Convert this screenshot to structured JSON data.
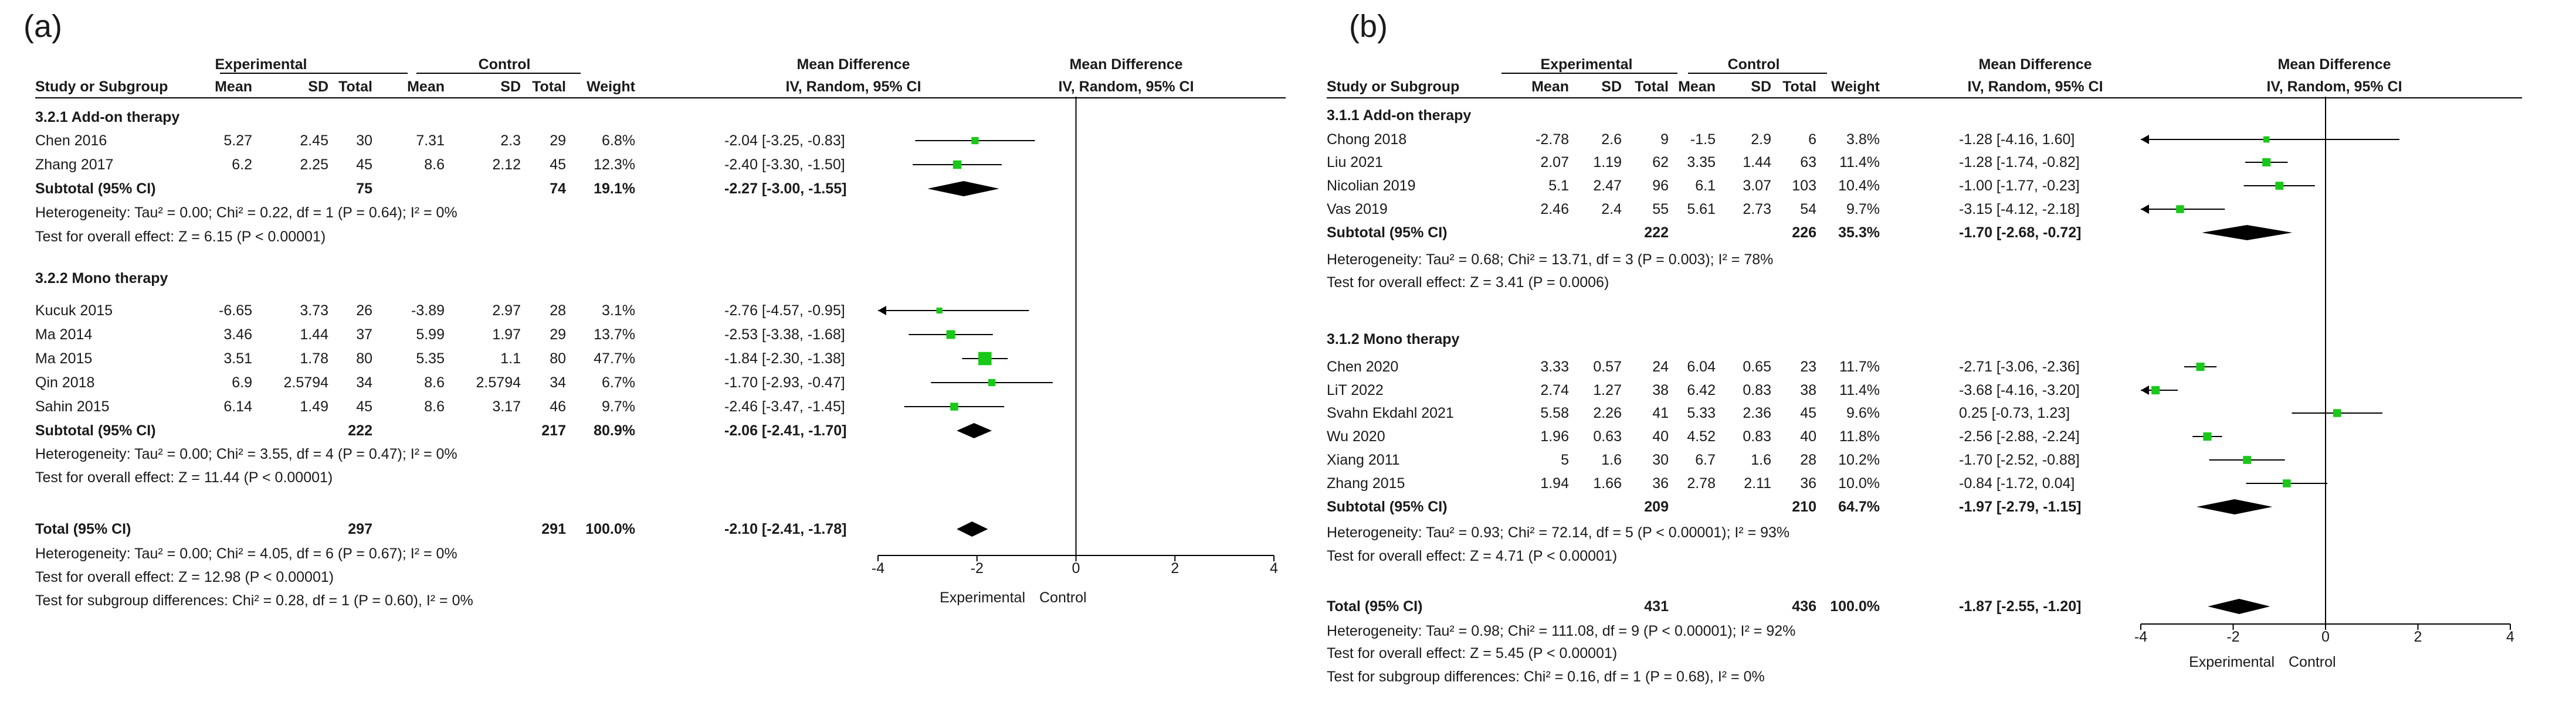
{
  "panels": [
    {
      "label": "(a)",
      "headers": {
        "experimental": "Experimental",
        "control": "Control",
        "mean_difference": "Mean Difference",
        "plot_title": "Mean Difference",
        "study": "Study or Subgroup",
        "mean_e": "Mean",
        "sd_e": "SD",
        "total_e": "Total",
        "mean_c": "Mean",
        "sd_c": "SD",
        "total_c": "Total",
        "weight": "Weight",
        "method": "IV, Random, 95% CI",
        "plot_method": "IV, Random, 95% CI"
      },
      "groups": [
        {
          "title": "3.2.1 Add-on therapy",
          "studies": [
            {
              "name": "Chen 2016",
              "mean_e": "5.27",
              "sd_e": "2.45",
              "n_e": "30",
              "mean_c": "7.31",
              "sd_c": "2.3",
              "n_c": "29",
              "weight": "6.8%",
              "ci_text": "-2.04 [-3.25, -0.83]",
              "md": -2.04,
              "lo": -3.25,
              "hi": -0.83,
              "w": 6.8
            },
            {
              "name": "Zhang 2017",
              "mean_e": "6.2",
              "sd_e": "2.25",
              "n_e": "45",
              "mean_c": "8.6",
              "sd_c": "2.12",
              "n_c": "45",
              "weight": "12.3%",
              "ci_text": "-2.40 [-3.30, -1.50]",
              "md": -2.4,
              "lo": -3.3,
              "hi": -1.5,
              "w": 12.3
            }
          ],
          "subtotal": {
            "label": "Subtotal (95% CI)",
            "n_e": "75",
            "n_c": "74",
            "weight": "19.1%",
            "ci_text": "-2.27 [-3.00, -1.55]",
            "md": -2.27,
            "lo": -3.0,
            "hi": -1.55
          },
          "heterogeneity": "Heterogeneity: Tau² = 0.00; Chi² = 0.22, df = 1 (P = 0.64); I² = 0%",
          "overall": "Test for overall effect: Z = 6.15 (P < 0.00001)"
        },
        {
          "title": "3.2.2 Mono therapy",
          "studies": [
            {
              "name": "Kucuk 2015",
              "mean_e": "-6.65",
              "sd_e": "3.73",
              "n_e": "26",
              "mean_c": "-3.89",
              "sd_c": "2.97",
              "n_c": "28",
              "weight": "3.1%",
              "ci_text": "-2.76 [-4.57, -0.95]",
              "md": -2.76,
              "lo": -4.57,
              "hi": -0.95,
              "w": 3.1
            },
            {
              "name": "Ma 2014",
              "mean_e": "3.46",
              "sd_e": "1.44",
              "n_e": "37",
              "mean_c": "5.99",
              "sd_c": "1.97",
              "n_c": "29",
              "weight": "13.7%",
              "ci_text": "-2.53 [-3.38, -1.68]",
              "md": -2.53,
              "lo": -3.38,
              "hi": -1.68,
              "w": 13.7
            },
            {
              "name": "Ma 2015",
              "mean_e": "3.51",
              "sd_e": "1.78",
              "n_e": "80",
              "mean_c": "5.35",
              "sd_c": "1.1",
              "n_c": "80",
              "weight": "47.7%",
              "ci_text": "-1.84 [-2.30, -1.38]",
              "md": -1.84,
              "lo": -2.3,
              "hi": -1.38,
              "w": 47.7
            },
            {
              "name": "Qin 2018",
              "mean_e": "6.9",
              "sd_e": "2.5794",
              "n_e": "34",
              "mean_c": "8.6",
              "sd_c": "2.5794",
              "n_c": "34",
              "weight": "6.7%",
              "ci_text": "-1.70 [-2.93, -0.47]",
              "md": -1.7,
              "lo": -2.93,
              "hi": -0.47,
              "w": 6.7
            },
            {
              "name": "Sahin 2015",
              "mean_e": "6.14",
              "sd_e": "1.49",
              "n_e": "45",
              "mean_c": "8.6",
              "sd_c": "3.17",
              "n_c": "46",
              "weight": "9.7%",
              "ci_text": "-2.46 [-3.47, -1.45]",
              "md": -2.46,
              "lo": -3.47,
              "hi": -1.45,
              "w": 9.7
            }
          ],
          "subtotal": {
            "label": "Subtotal (95% CI)",
            "n_e": "222",
            "n_c": "217",
            "weight": "80.9%",
            "ci_text": "-2.06 [-2.41, -1.70]",
            "md": -2.06,
            "lo": -2.41,
            "hi": -1.7
          },
          "heterogeneity": "Heterogeneity: Tau² = 0.00; Chi² = 3.55, df = 4 (P = 0.47); I² = 0%",
          "overall": "Test for overall effect: Z = 11.44 (P < 0.00001)"
        }
      ],
      "total": {
        "label": "Total (95% CI)",
        "n_e": "297",
        "n_c": "291",
        "weight": "100.0%",
        "ci_text": "-2.10 [-2.41, -1.78]",
        "md": -2.1,
        "lo": -2.41,
        "hi": -1.78
      },
      "footer": [
        "Heterogeneity: Tau² = 0.00; Chi² = 4.05, df = 6 (P = 0.67); I² = 0%",
        "Test for overall effect: Z = 12.98 (P < 0.00001)",
        "Test for subgroup differences: Chi² = 0.28, df = 1 (P = 0.60), I² = 0%"
      ],
      "axis": {
        "ticks": [
          "-4",
          "-2",
          "0",
          "2",
          "4"
        ],
        "left_label": "Experimental",
        "right_label": "Control"
      }
    },
    {
      "label": "(b)",
      "headers": {
        "experimental": "Experimental",
        "control": "Control",
        "mean_difference": "Mean Difference",
        "plot_title": "Mean Difference",
        "study": "Study or Subgroup",
        "mean_e": "Mean",
        "sd_e": "SD",
        "total_e": "Total",
        "mean_c": "Mean",
        "sd_c": "SD",
        "total_c": "Total",
        "weight": "Weight",
        "method": "IV, Random, 95% CI",
        "plot_method": "IV, Random, 95% CI"
      },
      "groups": [
        {
          "title": "3.1.1 Add-on therapy",
          "studies": [
            {
              "name": "Chong 2018",
              "mean_e": "-2.78",
              "sd_e": "2.6",
              "n_e": "9",
              "mean_c": "-1.5",
              "sd_c": "2.9",
              "n_c": "6",
              "weight": "3.8%",
              "ci_text": "-1.28 [-4.16, 1.60]",
              "md": -1.28,
              "lo": -4.16,
              "hi": 1.6,
              "w": 3.8
            },
            {
              "name": "Liu 2021",
              "mean_e": "2.07",
              "sd_e": "1.19",
              "n_e": "62",
              "mean_c": "3.35",
              "sd_c": "1.44",
              "n_c": "63",
              "weight": "11.4%",
              "ci_text": "-1.28 [-1.74, -0.82]",
              "md": -1.28,
              "lo": -1.74,
              "hi": -0.82,
              "w": 11.4
            },
            {
              "name": "Nicolian 2019",
              "mean_e": "5.1",
              "sd_e": "2.47",
              "n_e": "96",
              "mean_c": "6.1",
              "sd_c": "3.07",
              "n_c": "103",
              "weight": "10.4%",
              "ci_text": "-1.00 [-1.77, -0.23]",
              "md": -1.0,
              "lo": -1.77,
              "hi": -0.23,
              "w": 10.4
            },
            {
              "name": "Vas 2019",
              "mean_e": "2.46",
              "sd_e": "2.4",
              "n_e": "55",
              "mean_c": "5.61",
              "sd_c": "2.73",
              "n_c": "54",
              "weight": "9.7%",
              "ci_text": "-3.15 [-4.12, -2.18]",
              "md": -3.15,
              "lo": -4.12,
              "hi": -2.18,
              "w": 9.7
            }
          ],
          "subtotal": {
            "label": "Subtotal (95% CI)",
            "n_e": "222",
            "n_c": "226",
            "weight": "35.3%",
            "ci_text": "-1.70 [-2.68, -0.72]",
            "md": -1.7,
            "lo": -2.68,
            "hi": -0.72
          },
          "heterogeneity": "Heterogeneity: Tau² = 0.68; Chi² = 13.71, df = 3 (P = 0.003); I² = 78%",
          "overall": "Test for overall effect: Z = 3.41 (P = 0.0006)"
        },
        {
          "title": "3.1.2 Mono therapy",
          "studies": [
            {
              "name": "Chen 2020",
              "mean_e": "3.33",
              "sd_e": "0.57",
              "n_e": "24",
              "mean_c": "6.04",
              "sd_c": "0.65",
              "n_c": "23",
              "weight": "11.7%",
              "ci_text": "-2.71 [-3.06, -2.36]",
              "md": -2.71,
              "lo": -3.06,
              "hi": -2.36,
              "w": 11.7
            },
            {
              "name": "LiT 2022",
              "mean_e": "2.74",
              "sd_e": "1.27",
              "n_e": "38",
              "mean_c": "6.42",
              "sd_c": "0.83",
              "n_c": "38",
              "weight": "11.4%",
              "ci_text": "-3.68 [-4.16, -3.20]",
              "md": -3.68,
              "lo": -4.16,
              "hi": -3.2,
              "w": 11.4
            },
            {
              "name": "Svahn Ekdahl 2021",
              "mean_e": "5.58",
              "sd_e": "2.26",
              "n_e": "41",
              "mean_c": "5.33",
              "sd_c": "2.36",
              "n_c": "45",
              "weight": "9.6%",
              "ci_text": "0.25 [-0.73, 1.23]",
              "md": 0.25,
              "lo": -0.73,
              "hi": 1.23,
              "w": 9.6
            },
            {
              "name": "Wu 2020",
              "mean_e": "1.96",
              "sd_e": "0.63",
              "n_e": "40",
              "mean_c": "4.52",
              "sd_c": "0.83",
              "n_c": "40",
              "weight": "11.8%",
              "ci_text": "-2.56 [-2.88, -2.24]",
              "md": -2.56,
              "lo": -2.88,
              "hi": -2.24,
              "w": 11.8
            },
            {
              "name": "Xiang 2011",
              "mean_e": "5",
              "sd_e": "1.6",
              "n_e": "30",
              "mean_c": "6.7",
              "sd_c": "1.6",
              "n_c": "28",
              "weight": "10.2%",
              "ci_text": "-1.70 [-2.52, -0.88]",
              "md": -1.7,
              "lo": -2.52,
              "hi": -0.88,
              "w": 10.2
            },
            {
              "name": "Zhang 2015",
              "mean_e": "1.94",
              "sd_e": "1.66",
              "n_e": "36",
              "mean_c": "2.78",
              "sd_c": "2.11",
              "n_c": "36",
              "weight": "10.0%",
              "ci_text": "-0.84 [-1.72, 0.04]",
              "md": -0.84,
              "lo": -1.72,
              "hi": 0.04,
              "w": 10.0
            }
          ],
          "subtotal": {
            "label": "Subtotal (95% CI)",
            "n_e": "209",
            "n_c": "210",
            "weight": "64.7%",
            "ci_text": "-1.97 [-2.79, -1.15]",
            "md": -1.97,
            "lo": -2.79,
            "hi": -1.15
          },
          "heterogeneity": "Heterogeneity: Tau² = 0.93; Chi² = 72.14, df = 5 (P < 0.00001); I² = 93%",
          "overall": "Test for overall effect: Z = 4.71 (P < 0.00001)"
        }
      ],
      "total": {
        "label": "Total (95% CI)",
        "n_e": "431",
        "n_c": "436",
        "weight": "100.0%",
        "ci_text": "-1.87 [-2.55, -1.20]",
        "md": -1.87,
        "lo": -2.55,
        "hi": -1.2
      },
      "footer": [
        "Heterogeneity: Tau² = 0.98; Chi² = 111.08, df = 9 (P < 0.00001); I² = 92%",
        "Test for overall effect: Z = 5.45 (P < 0.00001)",
        "Test for subgroup differences: Chi² = 0.16, df = 1 (P = 0.68), I² = 0%"
      ],
      "axis": {
        "ticks": [
          "-4",
          "-2",
          "0",
          "2",
          "4"
        ],
        "left_label": "Experimental",
        "right_label": "Control"
      }
    }
  ],
  "chart_data": [
    {
      "type": "forest",
      "title": "(a)",
      "xlabel_left": "Experimental",
      "xlabel_right": "Control",
      "xlim": [
        -4,
        4
      ],
      "studies": [
        {
          "name": "Chen 2016",
          "md": -2.04,
          "ci": [
            -3.25,
            -0.83
          ],
          "weight": 6.8
        },
        {
          "name": "Zhang 2017",
          "md": -2.4,
          "ci": [
            -3.3,
            -1.5
          ],
          "weight": 12.3
        },
        {
          "name": "Kucuk 2015",
          "md": -2.76,
          "ci": [
            -4.57,
            -0.95
          ],
          "weight": 3.1
        },
        {
          "name": "Ma 2014",
          "md": -2.53,
          "ci": [
            -3.38,
            -1.68
          ],
          "weight": 13.7
        },
        {
          "name": "Ma 2015",
          "md": -1.84,
          "ci": [
            -2.3,
            -1.38
          ],
          "weight": 47.7
        },
        {
          "name": "Qin 2018",
          "md": -1.7,
          "ci": [
            -2.93,
            -0.47
          ],
          "weight": 6.7
        },
        {
          "name": "Sahin 2015",
          "md": -2.46,
          "ci": [
            -3.47,
            -1.45
          ],
          "weight": 9.7
        }
      ],
      "subtotals": [
        {
          "name": "3.2.1 Add-on therapy",
          "md": -2.27,
          "ci": [
            -3.0,
            -1.55
          ]
        },
        {
          "name": "3.2.2 Mono therapy",
          "md": -2.06,
          "ci": [
            -2.41,
            -1.7
          ]
        }
      ],
      "total": {
        "md": -2.1,
        "ci": [
          -2.41,
          -1.78
        ]
      }
    },
    {
      "type": "forest",
      "title": "(b)",
      "xlabel_left": "Experimental",
      "xlabel_right": "Control",
      "xlim": [
        -4,
        4
      ],
      "studies": [
        {
          "name": "Chong 2018",
          "md": -1.28,
          "ci": [
            -4.16,
            1.6
          ],
          "weight": 3.8
        },
        {
          "name": "Liu 2021",
          "md": -1.28,
          "ci": [
            -1.74,
            -0.82
          ],
          "weight": 11.4
        },
        {
          "name": "Nicolian 2019",
          "md": -1.0,
          "ci": [
            -1.77,
            -0.23
          ],
          "weight": 10.4
        },
        {
          "name": "Vas 2019",
          "md": -3.15,
          "ci": [
            -4.12,
            -2.18
          ],
          "weight": 9.7
        },
        {
          "name": "Chen 2020",
          "md": -2.71,
          "ci": [
            -3.06,
            -2.36
          ],
          "weight": 11.7
        },
        {
          "name": "LiT 2022",
          "md": -3.68,
          "ci": [
            -4.16,
            -3.2
          ],
          "weight": 11.4
        },
        {
          "name": "Svahn Ekdahl 2021",
          "md": 0.25,
          "ci": [
            -0.73,
            1.23
          ],
          "weight": 9.6
        },
        {
          "name": "Wu 2020",
          "md": -2.56,
          "ci": [
            -2.88,
            -2.24
          ],
          "weight": 11.8
        },
        {
          "name": "Xiang 2011",
          "md": -1.7,
          "ci": [
            -2.52,
            -0.88
          ],
          "weight": 10.2
        },
        {
          "name": "Zhang 2015",
          "md": -0.84,
          "ci": [
            -1.72,
            0.04
          ],
          "weight": 10.0
        }
      ],
      "subtotals": [
        {
          "name": "3.1.1 Add-on therapy",
          "md": -1.7,
          "ci": [
            -2.68,
            -0.72
          ]
        },
        {
          "name": "3.1.2 Mono therapy",
          "md": -1.97,
          "ci": [
            -2.79,
            -1.15
          ]
        }
      ],
      "total": {
        "md": -1.87,
        "ci": [
          -2.55,
          -1.2
        ]
      }
    }
  ]
}
